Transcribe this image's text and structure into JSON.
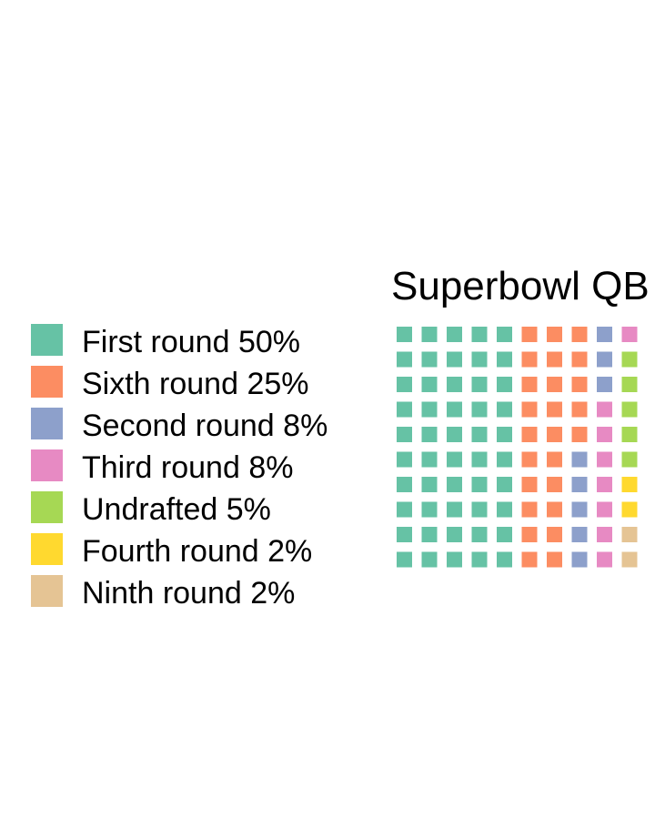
{
  "chart_data": {
    "type": "waffle",
    "title": "Superbowl QB",
    "rows": 10,
    "columns": 11,
    "categories": [
      {
        "name": "First round 50%",
        "count": 50,
        "color": "#66c2a5"
      },
      {
        "name": "Sixth round 25%",
        "count": 25,
        "color": "#fc8d62"
      },
      {
        "name": "Second round 8%",
        "count": 8,
        "color": "#8da0cb"
      },
      {
        "name": "Third round 8%",
        "count": 8,
        "color": "#e78ac3"
      },
      {
        "name": "Undrafted 5%",
        "count": 5,
        "color": "#a6d854"
      },
      {
        "name": "Fourth round 2%",
        "count": 2,
        "color": "#ffd92f"
      },
      {
        "name": "Ninth round 2%",
        "count": 2,
        "color": "#e5c494"
      }
    ],
    "legend_position": "left"
  }
}
